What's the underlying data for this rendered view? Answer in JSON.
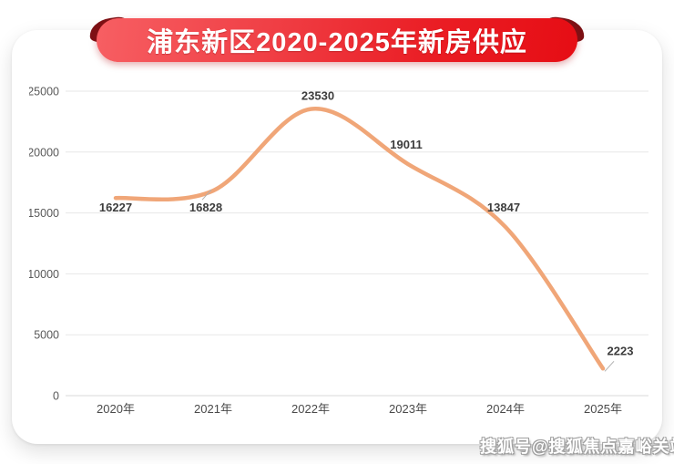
{
  "banner": {
    "title": "浦东新区2020-2025年新房供应"
  },
  "watermark": {
    "text": "搜狐号@搜狐焦点嘉峪关站"
  },
  "colors": {
    "line": "#f0a678",
    "grid": "#e7e7e7",
    "axis_zero_line": "#d8d8d8",
    "y_tick_text": "#595959",
    "x_tick_text": "#4a4a4a",
    "data_label_text": "#3d3d3d",
    "leader_line": "#b0b0b0",
    "ribbon_dark_fold": "#7c1115",
    "ribbon_red_start": "#f75f63",
    "ribbon_red_end": "#e60d14"
  },
  "chart_data": {
    "type": "line",
    "title": "浦东新区2020-2025年新房供应",
    "categories": [
      "2020年",
      "2021年",
      "2022年",
      "2023年",
      "2024年",
      "2025年"
    ],
    "values": [
      16227,
      16828,
      23530,
      19011,
      13847,
      2223
    ],
    "series": [
      {
        "name": "新房供应",
        "values": [
          16227,
          16828,
          23530,
          19011,
          13847,
          2223
        ]
      }
    ],
    "xlabel": "",
    "ylabel": "",
    "ylim": [
      0,
      25000
    ],
    "yticks": [
      0,
      5000,
      10000,
      15000,
      20000,
      25000
    ],
    "grid": true,
    "legend": "none",
    "line_style": "smooth"
  }
}
